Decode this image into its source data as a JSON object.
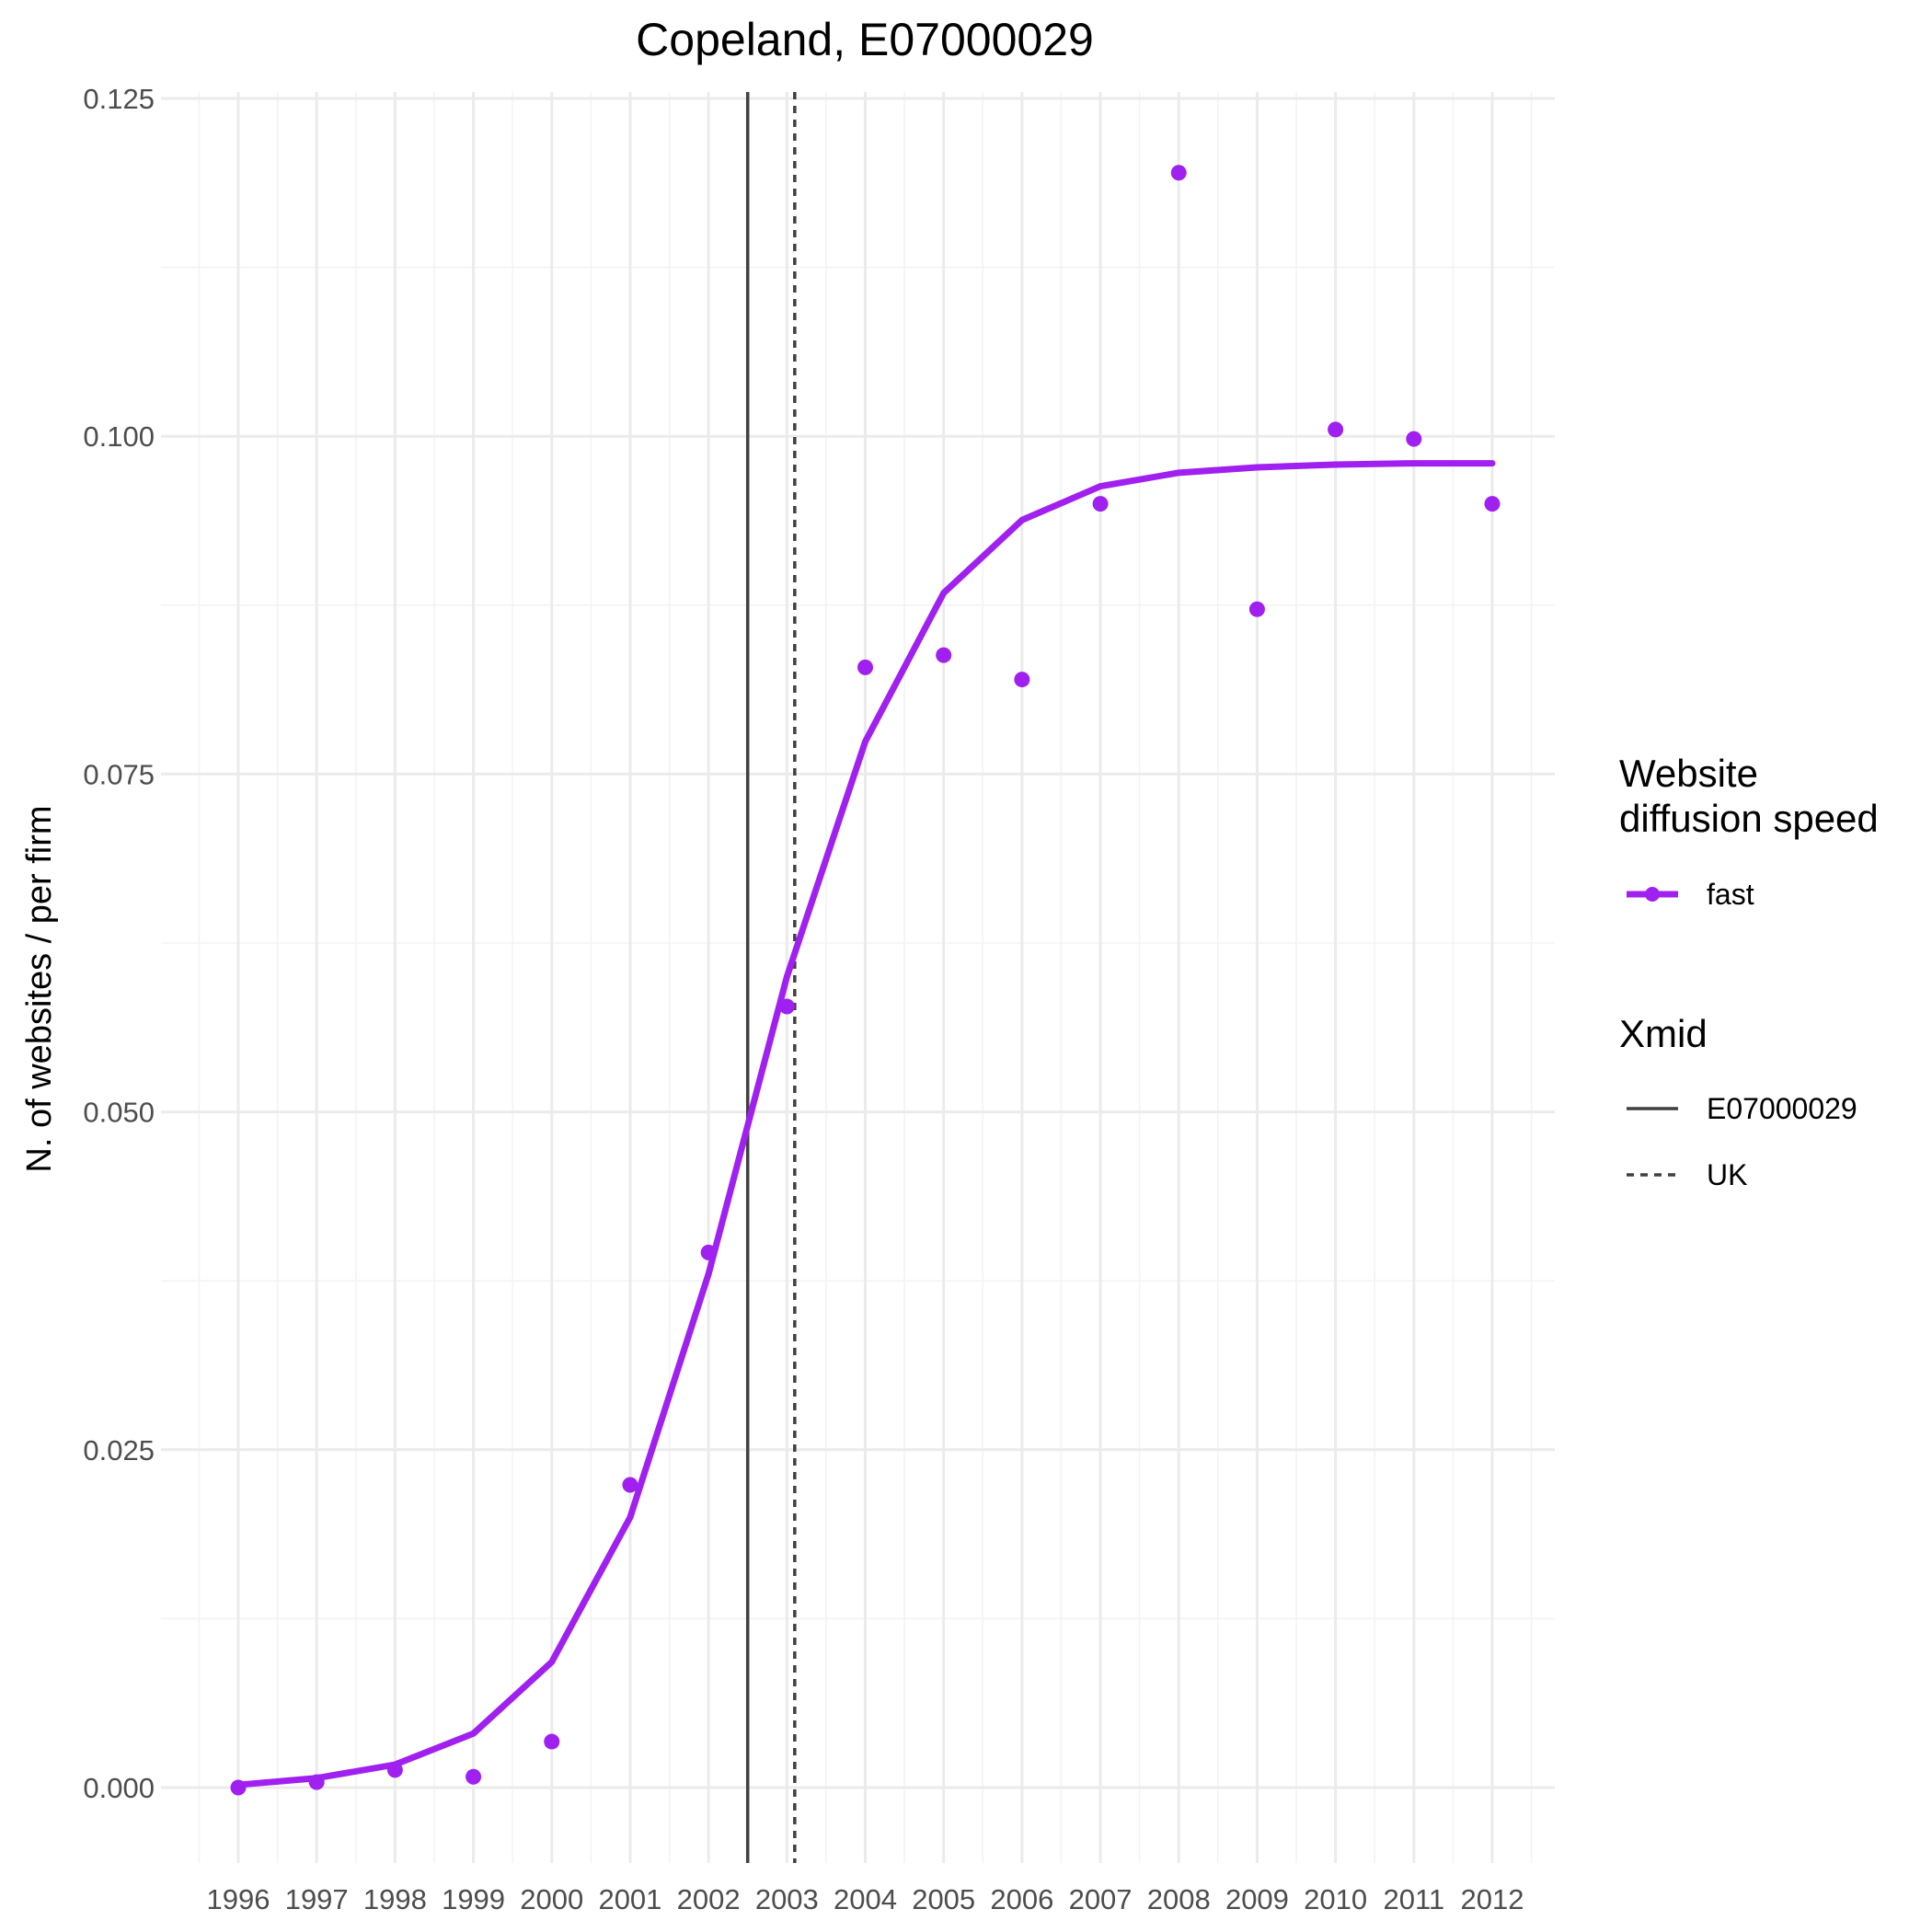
{
  "chart_data": {
    "type": "line",
    "title": "Copeland, E07000029",
    "xlabel": "",
    "ylabel": "N. of websites / per firm",
    "x": [
      1996,
      1997,
      1998,
      1999,
      2000,
      2001,
      2002,
      2003,
      2004,
      2005,
      2006,
      2007,
      2008,
      2009,
      2010,
      2011,
      2012
    ],
    "x_tick_labels": [
      "1996",
      "1997",
      "1998",
      "1999",
      "2000",
      "2001",
      "2002",
      "2003",
      "2004",
      "2005",
      "2006",
      "2007",
      "2008",
      "2009",
      "2010",
      "2011",
      "2012"
    ],
    "xlim": [
      1995.5,
      2012.5
    ],
    "ylim": [
      -0.005,
      0.125
    ],
    "y_ticks": [
      0,
      0.025,
      0.05,
      0.075,
      0.1,
      0.125
    ],
    "y_tick_labels": [
      "0.000",
      "0.025",
      "0.050",
      "0.075",
      "0.100",
      "0.125"
    ],
    "grid": true,
    "series": [
      {
        "name": "fast",
        "color": "#a020f0",
        "points": [
          0.0,
          0.0004,
          0.0013,
          0.0008,
          0.0034,
          0.0224,
          0.0396,
          0.0578,
          0.0829,
          0.0838,
          0.082,
          0.095,
          0.1195,
          0.0872,
          0.1005,
          0.0998,
          0.095
        ],
        "fit": [
          0.0002,
          0.0007,
          0.0017,
          0.004,
          0.0093,
          0.02,
          0.038,
          0.06,
          0.0774,
          0.0884,
          0.0938,
          0.0963,
          0.0973,
          0.0977,
          0.0979,
          0.098,
          0.098
        ]
      }
    ],
    "reference_lines": [
      {
        "name": "E07000029",
        "x": 2002.5,
        "style": "solid",
        "color": "#404040"
      },
      {
        "name": "UK",
        "x": 2003.1,
        "style": "dashed",
        "color": "#404040"
      }
    ],
    "legend": {
      "placement": "right",
      "groups": [
        {
          "title_lines": [
            "Website",
            "diffusion speed"
          ],
          "entries": [
            "fast"
          ]
        },
        {
          "title_lines": [
            "Xmid"
          ],
          "entries": [
            "E07000029",
            "UK"
          ]
        }
      ]
    }
  }
}
